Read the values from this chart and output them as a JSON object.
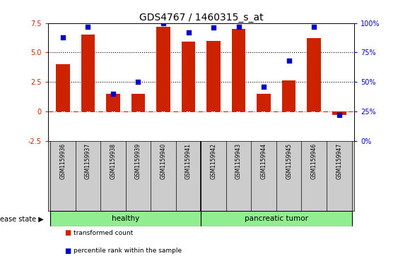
{
  "title": "GDS4767 / 1460315_s_at",
  "samples": [
    "GSM1159936",
    "GSM1159937",
    "GSM1159938",
    "GSM1159939",
    "GSM1159940",
    "GSM1159941",
    "GSM1159942",
    "GSM1159943",
    "GSM1159944",
    "GSM1159945",
    "GSM1159946",
    "GSM1159947"
  ],
  "bar_values": [
    4.0,
    6.5,
    1.5,
    1.5,
    7.2,
    5.9,
    6.0,
    7.0,
    1.5,
    2.6,
    6.2,
    -0.3
  ],
  "percentile_values": [
    88,
    97,
    40,
    50,
    100,
    92,
    96,
    97,
    46,
    68,
    97,
    22
  ],
  "bar_color": "#CC2200",
  "dot_color": "#0000CC",
  "ylim_left": [
    -2.5,
    7.5
  ],
  "ylim_right": [
    0,
    100
  ],
  "yticks_left": [
    -2.5,
    0,
    2.5,
    5.0,
    7.5
  ],
  "yticks_right": [
    0,
    25,
    50,
    75,
    100
  ],
  "ytick_labels_left": [
    "-2.5",
    "0",
    "2.5",
    "5.0",
    "7.5"
  ],
  "ytick_labels_right": [
    "0%",
    "25%",
    "50%",
    "75%",
    "100%"
  ],
  "hlines": [
    2.5,
    5.0
  ],
  "hline_color": "black",
  "zero_line_color": "#CC2200",
  "healthy_count": 6,
  "tumor_count": 6,
  "healthy_label": "healthy",
  "tumor_label": "pancreatic tumor",
  "healthy_color": "#90EE90",
  "tumor_color": "#90EE90",
  "group_label": "disease state",
  "legend_bar_label": "transformed count",
  "legend_dot_label": "percentile rank within the sample",
  "background_color": "#FFFFFF",
  "tick_label_area_color": "#CCCCCC",
  "title_fontsize": 10,
  "axis_fontsize": 7,
  "legend_fontsize": 7
}
